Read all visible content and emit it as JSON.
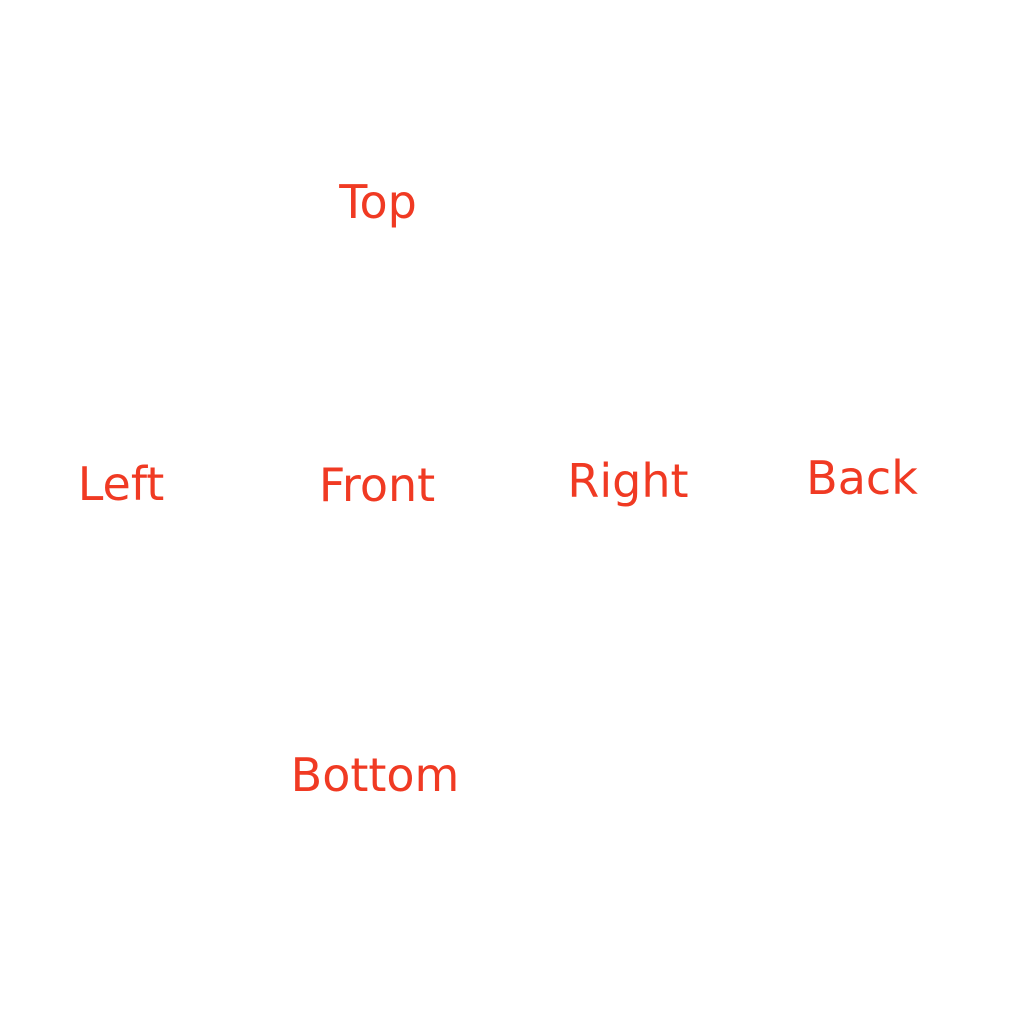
{
  "label_color": "#f03a23",
  "background_color": "#ffffff",
  "cube_net": {
    "top": "Top",
    "left": "Left",
    "front": "Front",
    "right": "Right",
    "back": "Back",
    "bottom": "Bottom"
  }
}
